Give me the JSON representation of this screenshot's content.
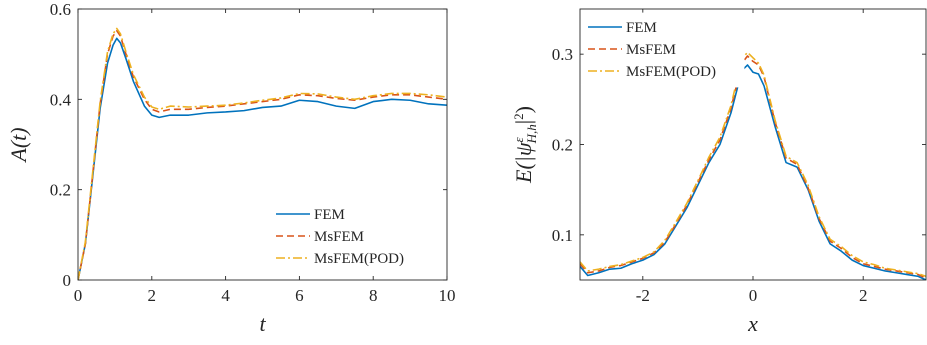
{
  "colors": {
    "fem": "#0072BD",
    "msfem": "#D95319",
    "msfem_pod": "#EDB120",
    "axis": "#262626",
    "legend_border": "#262626"
  },
  "chart_data": [
    {
      "type": "line",
      "xlabel": "t",
      "ylabel": "A(t)",
      "xlim": [
        0,
        10
      ],
      "ylim": [
        0,
        0.6
      ],
      "xticks": [
        0,
        2,
        4,
        6,
        8,
        10
      ],
      "yticks": [
        0,
        0.2,
        0.4,
        0.6
      ],
      "xtick_labels": [
        "0",
        "2",
        "4",
        "6",
        "8",
        "10"
      ],
      "ytick_labels": [
        "0",
        "0.2",
        "0.4",
        "0.6"
      ],
      "grid": false,
      "legend_position": "bottom-right",
      "series": [
        {
          "name": "FEM",
          "style": "solid",
          "x": [
            0,
            0.2,
            0.4,
            0.6,
            0.8,
            0.95,
            1.05,
            1.15,
            1.3,
            1.5,
            1.8,
            2.0,
            2.2,
            2.5,
            3.0,
            3.5,
            4.0,
            4.5,
            5.0,
            5.5,
            6.0,
            6.5,
            7.0,
            7.5,
            8.0,
            8.5,
            9.0,
            9.5,
            10.0
          ],
          "y": [
            0.0,
            0.08,
            0.23,
            0.38,
            0.48,
            0.52,
            0.535,
            0.525,
            0.49,
            0.44,
            0.385,
            0.365,
            0.36,
            0.365,
            0.365,
            0.37,
            0.372,
            0.375,
            0.382,
            0.385,
            0.398,
            0.395,
            0.385,
            0.38,
            0.395,
            0.4,
            0.398,
            0.39,
            0.387
          ]
        },
        {
          "name": "MsFEM",
          "style": "dashed",
          "x": [
            0,
            0.2,
            0.4,
            0.6,
            0.8,
            0.95,
            1.05,
            1.15,
            1.3,
            1.5,
            1.8,
            2.0,
            2.2,
            2.5,
            3.0,
            3.5,
            4.0,
            4.5,
            5.0,
            5.5,
            6.0,
            6.5,
            7.0,
            7.5,
            8.0,
            8.5,
            9.0,
            9.5,
            10.0
          ],
          "y": [
            0.0,
            0.08,
            0.235,
            0.39,
            0.5,
            0.54,
            0.552,
            0.54,
            0.5,
            0.45,
            0.4,
            0.378,
            0.372,
            0.378,
            0.378,
            0.382,
            0.385,
            0.39,
            0.395,
            0.4,
            0.41,
            0.408,
            0.402,
            0.398,
            0.405,
            0.41,
            0.41,
            0.405,
            0.4
          ]
        },
        {
          "name": "MsFEM(POD)",
          "style": "dashdot",
          "x": [
            0,
            0.2,
            0.4,
            0.6,
            0.8,
            0.95,
            1.05,
            1.15,
            1.3,
            1.5,
            1.8,
            2.0,
            2.2,
            2.5,
            3.0,
            3.5,
            4.0,
            4.5,
            5.0,
            5.5,
            6.0,
            6.5,
            7.0,
            7.5,
            8.0,
            8.5,
            9.0,
            9.5,
            10.0
          ],
          "y": [
            0.0,
            0.085,
            0.24,
            0.395,
            0.505,
            0.545,
            0.557,
            0.545,
            0.505,
            0.455,
            0.405,
            0.383,
            0.378,
            0.385,
            0.383,
            0.385,
            0.387,
            0.392,
            0.398,
            0.403,
            0.413,
            0.412,
            0.405,
            0.4,
            0.408,
            0.413,
            0.413,
            0.41,
            0.405
          ]
        }
      ]
    },
    {
      "type": "line",
      "xlabel": "x",
      "ylabel": "E(|ψ^ε_{H,h}|^2)",
      "xlim": [
        -3.14,
        3.14
      ],
      "ylim": [
        0.05,
        0.35
      ],
      "xticks": [
        -2,
        0,
        2
      ],
      "yticks": [
        0.1,
        0.2,
        0.3
      ],
      "xtick_labels": [
        "-2",
        "0",
        "2"
      ],
      "ytick_labels": [
        "0.1",
        "0.2",
        "0.3"
      ],
      "grid": false,
      "legend_position": "top-left",
      "series": [
        {
          "name": "FEM",
          "style": "solid",
          "x": [
            -3.14,
            -3.0,
            -2.8,
            -2.6,
            -2.4,
            -2.2,
            -2.0,
            -1.8,
            -1.6,
            -1.4,
            -1.2,
            -1.0,
            -0.8,
            -0.6,
            -0.4,
            -0.2,
            -0.1,
            0.0,
            0.1,
            0.2,
            0.4,
            0.6,
            0.8,
            1.0,
            1.2,
            1.4,
            1.6,
            1.8,
            2.0,
            2.2,
            2.4,
            2.6,
            2.8,
            3.0,
            3.14
          ],
          "y": [
            0.065,
            0.055,
            0.058,
            0.062,
            0.063,
            0.068,
            0.072,
            0.078,
            0.09,
            0.11,
            0.13,
            0.155,
            0.18,
            0.2,
            0.235,
            0.282,
            0.288,
            0.28,
            0.278,
            0.265,
            0.22,
            0.18,
            0.175,
            0.15,
            0.115,
            0.09,
            0.082,
            0.072,
            0.066,
            0.063,
            0.06,
            0.058,
            0.056,
            0.054,
            0.05
          ]
        },
        {
          "name": "MsFEM",
          "style": "dashed",
          "x": [
            -3.14,
            -3.0,
            -2.8,
            -2.6,
            -2.4,
            -2.2,
            -2.0,
            -1.8,
            -1.6,
            -1.4,
            -1.2,
            -1.0,
            -0.8,
            -0.6,
            -0.4,
            -0.2,
            -0.1,
            0.0,
            0.1,
            0.2,
            0.4,
            0.6,
            0.8,
            1.0,
            1.2,
            1.4,
            1.6,
            1.8,
            2.0,
            2.2,
            2.4,
            2.6,
            2.8,
            3.0,
            3.14
          ],
          "y": [
            0.068,
            0.058,
            0.06,
            0.064,
            0.066,
            0.07,
            0.074,
            0.08,
            0.092,
            0.112,
            0.133,
            0.158,
            0.183,
            0.205,
            0.24,
            0.29,
            0.298,
            0.292,
            0.288,
            0.275,
            0.225,
            0.185,
            0.178,
            0.152,
            0.118,
            0.093,
            0.085,
            0.075,
            0.068,
            0.065,
            0.062,
            0.06,
            0.058,
            0.056,
            0.052
          ]
        },
        {
          "name": "MsFEM(POD)",
          "style": "dashdot",
          "x": [
            -3.14,
            -3.0,
            -2.8,
            -2.6,
            -2.4,
            -2.2,
            -2.0,
            -1.8,
            -1.6,
            -1.4,
            -1.2,
            -1.0,
            -0.8,
            -0.6,
            -0.4,
            -0.2,
            -0.1,
            0.0,
            0.1,
            0.2,
            0.4,
            0.6,
            0.8,
            1.0,
            1.2,
            1.4,
            1.6,
            1.8,
            2.0,
            2.2,
            2.4,
            2.6,
            2.8,
            3.0,
            3.14
          ],
          "y": [
            0.07,
            0.06,
            0.062,
            0.065,
            0.067,
            0.071,
            0.075,
            0.081,
            0.094,
            0.114,
            0.135,
            0.16,
            0.186,
            0.208,
            0.243,
            0.295,
            0.302,
            0.296,
            0.29,
            0.277,
            0.227,
            0.187,
            0.18,
            0.155,
            0.12,
            0.095,
            0.087,
            0.077,
            0.07,
            0.067,
            0.063,
            0.061,
            0.059,
            0.057,
            0.054
          ]
        }
      ]
    }
  ]
}
